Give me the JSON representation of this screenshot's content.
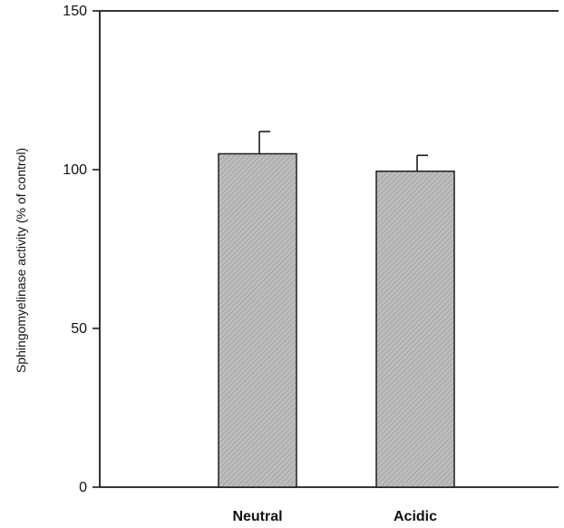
{
  "chart_data": {
    "type": "bar",
    "categories": [
      "Neutral",
      "Acidic"
    ],
    "values": [
      105,
      99.5
    ],
    "errors": [
      7,
      5
    ],
    "title": "",
    "xlabel": "",
    "ylabel": "Sphingomyelinase activity (% of control)",
    "ylim": [
      0,
      150
    ],
    "yticks": [
      0,
      50,
      100,
      150
    ],
    "grid": false,
    "colors": {
      "bar_fill": "#b9b9b9",
      "bar_stroke": "#1e1e1e",
      "axis": "#1a1a1a",
      "text": "#111111"
    }
  }
}
